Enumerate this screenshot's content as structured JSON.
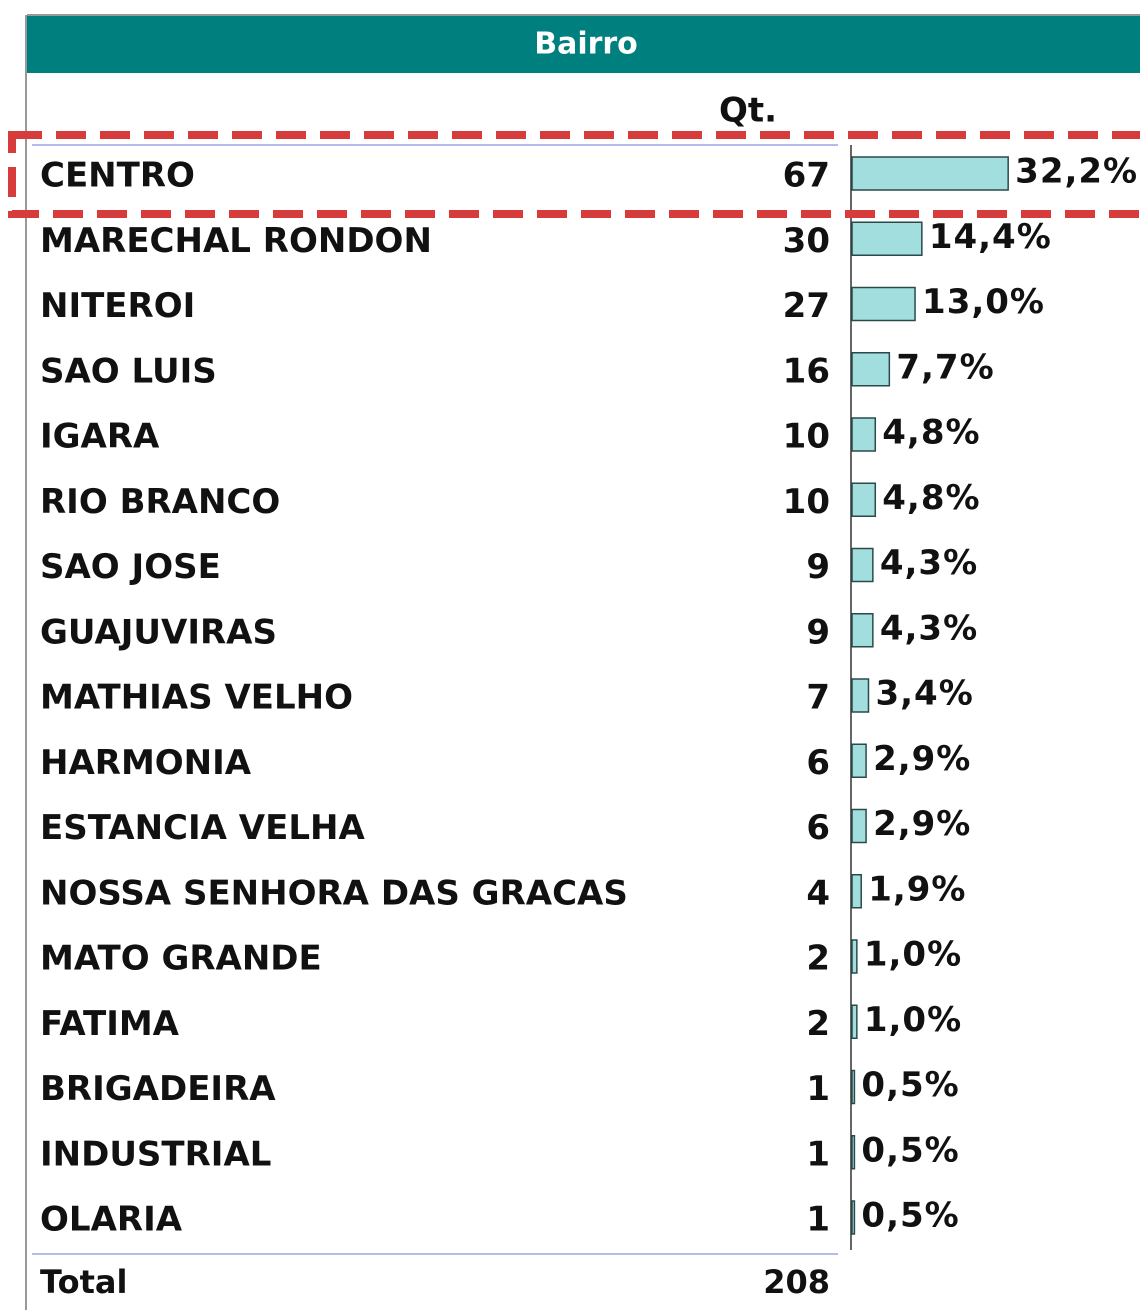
{
  "chart_data": {
    "type": "bar",
    "title": "Bairro",
    "counts_header": "Qt.",
    "categories": [
      "CENTRO",
      "MARECHAL RONDON",
      "NITEROI",
      "SAO LUIS",
      "IGARA",
      "RIO BRANCO",
      "SAO JOSE",
      "GUAJUVIRAS",
      "MATHIAS VELHO",
      "HARMONIA",
      "ESTANCIA VELHA",
      "NOSSA SENHORA DAS GRACAS",
      "MATO GRANDE",
      "FATIMA",
      "BRIGADEIRA",
      "INDUSTRIAL",
      "OLARIA"
    ],
    "counts": [
      67,
      30,
      27,
      16,
      10,
      10,
      9,
      9,
      7,
      6,
      6,
      4,
      2,
      2,
      1,
      1,
      1
    ],
    "values": [
      32.2,
      14.4,
      13.0,
      7.7,
      4.8,
      4.8,
      4.3,
      4.3,
      3.4,
      2.9,
      2.9,
      1.9,
      1.0,
      1.0,
      0.5,
      0.5,
      0.5
    ],
    "value_labels": [
      "32,2%",
      "14,4%",
      "13,0%",
      "7,7%",
      "4,8%",
      "4,8%",
      "4,3%",
      "4,3%",
      "3,4%",
      "2,9%",
      "2,9%",
      "1,9%",
      "1,0%",
      "1,0%",
      "0,5%",
      "0,5%",
      "0,5%"
    ],
    "total_label": "Total",
    "total": 208,
    "color": "#a3dede"
  }
}
